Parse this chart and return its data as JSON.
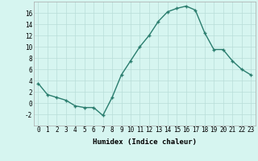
{
  "xlabel": "Humidex (Indice chaleur)",
  "x_values": [
    0,
    1,
    2,
    3,
    4,
    5,
    6,
    7,
    8,
    9,
    10,
    11,
    12,
    13,
    14,
    15,
    16,
    17,
    18,
    19,
    20,
    21,
    22,
    23
  ],
  "y_values": [
    3.5,
    1.5,
    1.0,
    0.5,
    -0.5,
    -0.8,
    -0.8,
    -2.2,
    1.0,
    5.0,
    7.5,
    10.0,
    12.0,
    14.5,
    16.2,
    16.8,
    17.2,
    16.5,
    12.5,
    9.5,
    9.5,
    7.5,
    6.0,
    5.0
  ],
  "line_color": "#2a7d6e",
  "marker_color": "#2a7d6e",
  "bg_color": "#d6f5f0",
  "grid_color": "#b8ddd8",
  "text_color": "#000000",
  "ylim": [
    -4,
    18
  ],
  "xlim": [
    -0.5,
    23.5
  ],
  "yticks": [
    -2,
    0,
    2,
    4,
    6,
    8,
    10,
    12,
    14,
    16
  ],
  "xticks": [
    0,
    1,
    2,
    3,
    4,
    5,
    6,
    7,
    8,
    9,
    10,
    11,
    12,
    13,
    14,
    15,
    16,
    17,
    18,
    19,
    20,
    21,
    22,
    23
  ],
  "xtick_labels": [
    "0",
    "1",
    "2",
    "3",
    "4",
    "5",
    "6",
    "7",
    "8",
    "9",
    "10",
    "11",
    "12",
    "13",
    "14",
    "15",
    "16",
    "17",
    "18",
    "19",
    "20",
    "21",
    "22",
    "23"
  ],
  "marker_size": 2.5,
  "line_width": 1.0,
  "font_size_label": 6.5,
  "font_size_tick": 5.5
}
